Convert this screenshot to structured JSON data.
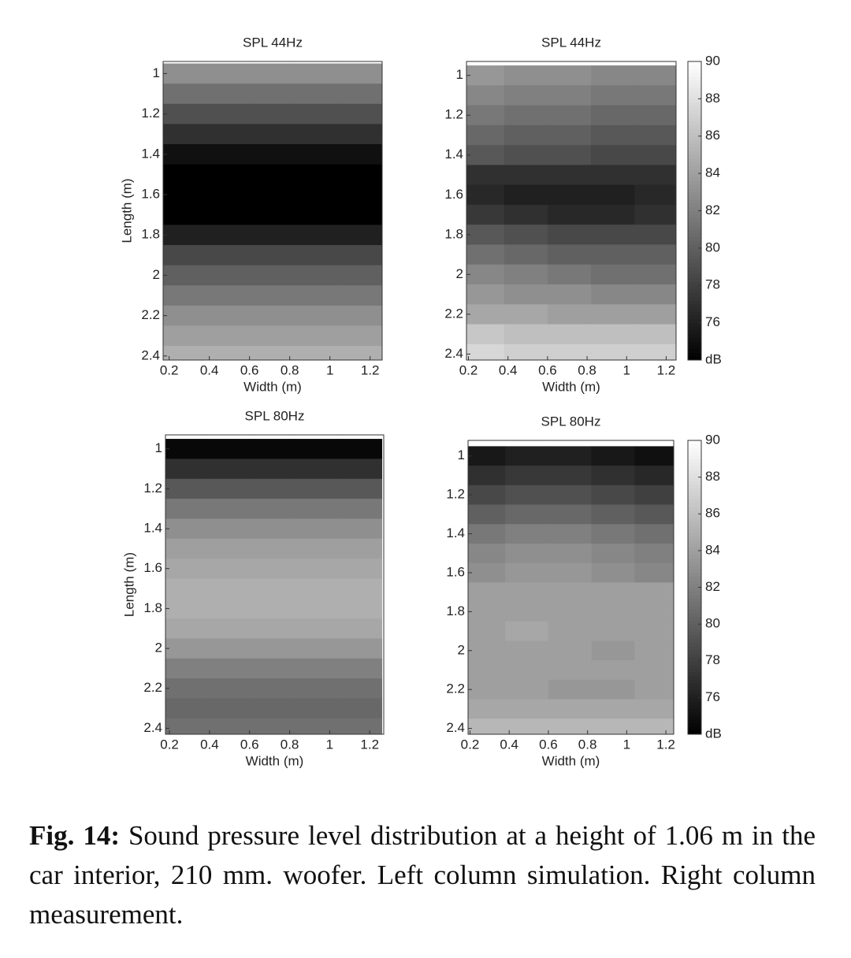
{
  "chart_data": [
    {
      "type": "heatmap",
      "title": "SPL 44Hz",
      "xlabel": "Width (m)",
      "ylabel": "Length (m)",
      "x": [
        0.27,
        0.49,
        0.71,
        0.93,
        1.15
      ],
      "y": [
        1.0,
        1.1,
        1.2,
        1.3,
        1.4,
        1.5,
        1.6,
        1.7,
        1.8,
        1.9,
        2.0,
        2.1,
        2.2,
        2.3,
        2.4
      ],
      "z": [
        [
          83,
          83,
          83,
          83,
          83
        ],
        [
          81,
          81,
          81,
          81,
          81
        ],
        [
          79,
          79,
          79,
          79,
          79
        ],
        [
          77,
          77,
          77,
          77,
          77
        ],
        [
          75,
          75,
          75,
          75,
          75
        ],
        [
          74,
          74,
          74,
          74,
          74
        ],
        [
          74,
          74,
          74,
          74,
          74
        ],
        [
          74,
          74,
          74,
          74,
          74
        ],
        [
          76,
          76,
          76,
          76,
          76
        ],
        [
          78.5,
          78.5,
          78.5,
          78.5,
          78.5
        ],
        [
          80,
          80,
          80,
          80,
          80
        ],
        [
          81.5,
          81.5,
          81.5,
          81.5,
          81.5
        ],
        [
          83,
          83,
          83,
          83,
          83
        ],
        [
          84,
          84,
          84,
          84,
          84
        ],
        [
          85,
          85,
          85,
          85,
          85
        ]
      ],
      "xlim": [
        0.17,
        1.26
      ],
      "ylim": [
        2.42,
        0.94
      ],
      "xticks": [
        0.2,
        0.4,
        0.6,
        0.8,
        1,
        1.2
      ],
      "yticks": [
        1,
        1.2,
        1.4,
        1.6,
        1.8,
        2,
        2.2,
        2.4
      ],
      "clim": [
        74,
        90
      ]
    },
    {
      "type": "heatmap",
      "title": "SPL 44Hz",
      "xlabel": "Width (m)",
      "x": [
        0.27,
        0.49,
        0.71,
        0.93,
        1.15
      ],
      "y": [
        1.0,
        1.1,
        1.2,
        1.3,
        1.4,
        1.5,
        1.6,
        1.7,
        1.8,
        1.9,
        2.0,
        2.1,
        2.2,
        2.3,
        2.4
      ],
      "z": [
        [
          83.5,
          83,
          83,
          82.5,
          82.5
        ],
        [
          82.5,
          82,
          82,
          81.5,
          81.5
        ],
        [
          81.5,
          81,
          81,
          80.5,
          80.5
        ],
        [
          80.5,
          80,
          80,
          79.5,
          79.5
        ],
        [
          79.5,
          79,
          79,
          78.5,
          78.5
        ],
        [
          77,
          77,
          77,
          77,
          77
        ],
        [
          76.5,
          76,
          76,
          76,
          76.5
        ],
        [
          77.5,
          77,
          76.5,
          76.5,
          77
        ],
        [
          79.5,
          79,
          78.5,
          78.5,
          78.5
        ],
        [
          81,
          80.5,
          80,
          80,
          80
        ],
        [
          82.5,
          82,
          81.5,
          81,
          81
        ],
        [
          83.5,
          83,
          83,
          82.5,
          82.5
        ],
        [
          84.5,
          84.5,
          84,
          84,
          84
        ],
        [
          86.5,
          86,
          86,
          86,
          86
        ],
        [
          87.5,
          87,
          87,
          87,
          87
        ]
      ],
      "xlim": [
        0.19,
        1.25
      ],
      "ylim": [
        2.43,
        0.93
      ],
      "xticks": [
        0.2,
        0.4,
        0.6,
        0.8,
        1,
        1.2
      ],
      "yticks": [
        1,
        1.2,
        1.4,
        1.6,
        1.8,
        2,
        2.2,
        2.4
      ],
      "clim": [
        74,
        90
      ],
      "colorbar": true,
      "cticks": [
        {
          "value": 74,
          "label": "dB"
        },
        76,
        78,
        80,
        82,
        84,
        86,
        88,
        90
      ]
    },
    {
      "type": "heatmap",
      "title": "SPL 80Hz",
      "xlabel": "Width (m)",
      "ylabel": "Length (m)",
      "x": [
        0.27,
        0.49,
        0.71,
        0.93,
        1.15
      ],
      "y": [
        1.0,
        1.1,
        1.2,
        1.3,
        1.4,
        1.5,
        1.6,
        1.7,
        1.8,
        1.9,
        2.0,
        2.1,
        2.2,
        2.3,
        2.4
      ],
      "z": [
        [
          74.5,
          74.5,
          74.5,
          74.5,
          74.5
        ],
        [
          77,
          77,
          77,
          77,
          77
        ],
        [
          79.5,
          79.5,
          79.5,
          79.5,
          79.5
        ],
        [
          81.5,
          81.5,
          81.5,
          81.5,
          81.5
        ],
        [
          83,
          83,
          83,
          83,
          83
        ],
        [
          84,
          84,
          84,
          84,
          84
        ],
        [
          84.5,
          84.5,
          84.5,
          84.5,
          84.5
        ],
        [
          85,
          85,
          85,
          85,
          85
        ],
        [
          85,
          85,
          85,
          85,
          85
        ],
        [
          84.5,
          84.5,
          84.5,
          84.5,
          84.5
        ],
        [
          83.5,
          83.5,
          83.5,
          83.5,
          83.5
        ],
        [
          82,
          82,
          82,
          82,
          82
        ],
        [
          81,
          81,
          81,
          81,
          81
        ],
        [
          80.5,
          80.5,
          80.5,
          80.5,
          80.5
        ],
        [
          81,
          81,
          81,
          81,
          81
        ]
      ],
      "xlim": [
        0.18,
        1.27
      ],
      "ylim": [
        2.43,
        0.93
      ],
      "xticks": [
        0.2,
        0.4,
        0.6,
        0.8,
        1,
        1.2
      ],
      "yticks": [
        1,
        1.2,
        1.4,
        1.6,
        1.8,
        2,
        2.2,
        2.4
      ],
      "clim": [
        74,
        90
      ]
    },
    {
      "type": "heatmap",
      "title": "SPL 80Hz",
      "xlabel": "Width (m)",
      "x": [
        0.27,
        0.49,
        0.71,
        0.93,
        1.15
      ],
      "y": [
        1.0,
        1.1,
        1.2,
        1.3,
        1.4,
        1.5,
        1.6,
        1.7,
        1.8,
        1.9,
        2.0,
        2.1,
        2.2,
        2.3,
        2.4
      ],
      "z": [
        [
          75.5,
          76,
          76,
          75.5,
          75
        ],
        [
          77,
          77.5,
          77.5,
          77,
          76.5
        ],
        [
          78.5,
          79,
          79,
          78.5,
          78
        ],
        [
          80,
          80.5,
          80.5,
          80,
          79.5
        ],
        [
          81.5,
          82,
          82,
          81.5,
          81
        ],
        [
          82.5,
          83,
          83,
          82.5,
          82
        ],
        [
          83,
          83.5,
          83.5,
          83,
          82.5
        ],
        [
          84,
          84,
          84,
          84,
          84
        ],
        [
          84,
          84,
          84,
          84,
          84
        ],
        [
          84,
          84.5,
          84,
          84,
          84
        ],
        [
          84,
          84,
          84,
          83.5,
          84
        ],
        [
          84,
          84,
          84,
          84,
          84
        ],
        [
          84,
          84,
          83.5,
          83.5,
          84
        ],
        [
          84.5,
          84.5,
          84.5,
          84.5,
          84.5
        ],
        [
          85.5,
          85.5,
          85.5,
          85.5,
          85.5
        ]
      ],
      "xlim": [
        0.19,
        1.24
      ],
      "ylim": [
        2.43,
        0.92
      ],
      "xticks": [
        0.2,
        0.4,
        0.6,
        0.8,
        1,
        1.2
      ],
      "yticks": [
        1,
        1.2,
        1.4,
        1.6,
        1.8,
        2,
        2.2,
        2.4
      ],
      "clim": [
        74,
        90
      ],
      "colorbar": true,
      "cticks": [
        {
          "value": 74,
          "label": "dB"
        },
        76,
        78,
        80,
        82,
        84,
        86,
        88,
        90
      ]
    }
  ],
  "caption": {
    "label": "Fig. 14:",
    "text": "Sound pressure level distribution at a height of 1.06 m in the car interior, 210 mm. woofer. Left column simulation. Right column measurement."
  }
}
